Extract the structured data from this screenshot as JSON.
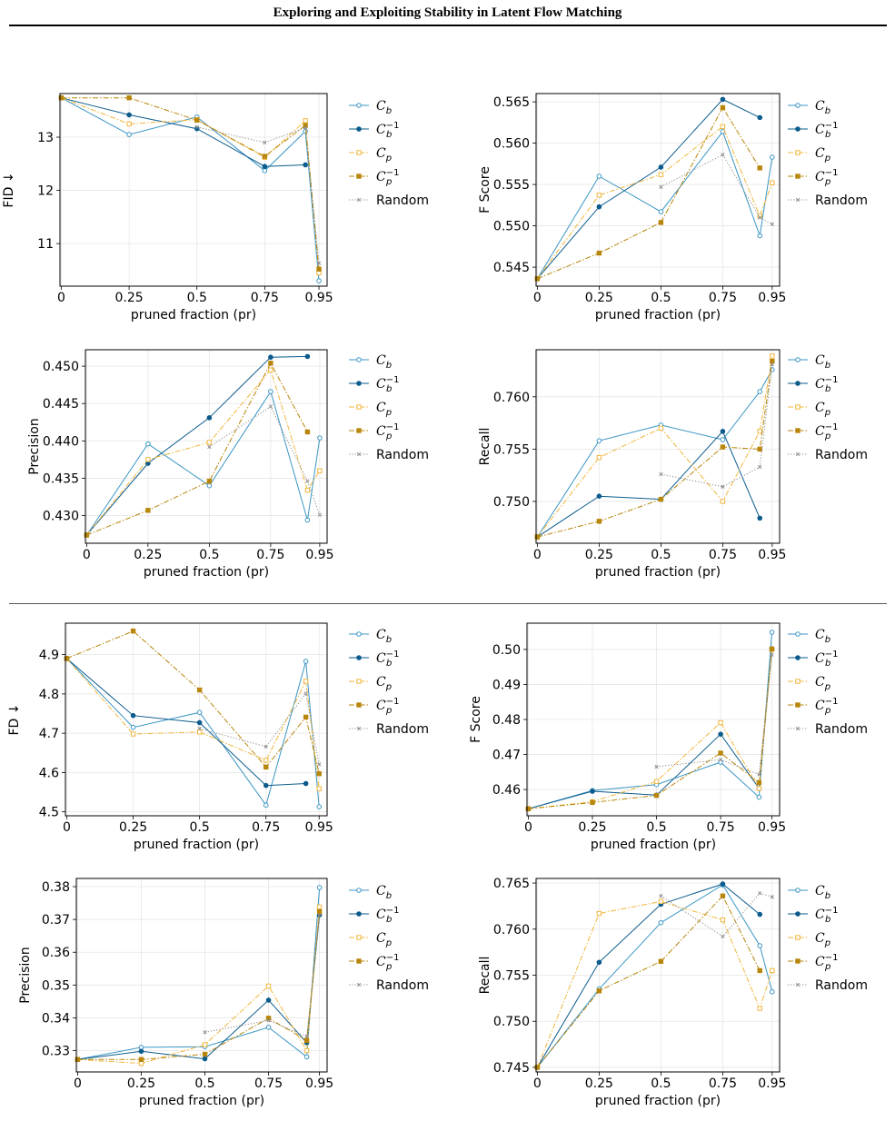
{
  "header": {
    "title": "Exploring and Exploiting Stability in Latent Flow Matching"
  },
  "styles": {
    "Cb": {
      "color": "#3b96c4",
      "marker": "circle-open",
      "dash": "solid"
    },
    "Cbi": {
      "color": "#0b5b8c",
      "marker": "circle-filled",
      "dash": "solid"
    },
    "Cp": {
      "color": "#f0b63c",
      "marker": "square-open",
      "dash": "dashdot"
    },
    "Cpi": {
      "color": "#b8860b",
      "marker": "square-filled",
      "dash": "dashdot"
    },
    "Rand": {
      "color": "#8c8c8c",
      "marker": "x",
      "dash": "dotted"
    }
  },
  "legend_labels": [
    {
      "key": "Cb",
      "base": "C",
      "sub": "b",
      "sup": ""
    },
    {
      "key": "Cbi",
      "base": "C",
      "sub": "b",
      "sup": "−1"
    },
    {
      "key": "Cp",
      "base": "C",
      "sub": "p",
      "sup": ""
    },
    {
      "key": "Cpi",
      "base": "C",
      "sub": "p",
      "sup": "−1"
    },
    {
      "key": "Rand",
      "base": "Random",
      "sub": "",
      "sup": ""
    }
  ],
  "chart_data": [
    {
      "type": "line",
      "ylabel": "FID ↓",
      "xlabel": "pruned fraction (pr)",
      "xticks": [
        0,
        0.25,
        0.5,
        0.75,
        0.95
      ],
      "xtick_labels": [
        "0",
        "0.25",
        "0.5",
        "0.75",
        "0.95"
      ],
      "xlim": [
        -0.005,
        0.98
      ],
      "ylim": [
        10.2,
        13.82
      ],
      "yticks": [
        11,
        12,
        13
      ],
      "ytick_labels": [
        "11",
        "12",
        "13"
      ],
      "series": [
        {
          "key": "Cb",
          "x": [
            0,
            0.25,
            0.5,
            0.75,
            0.9,
            0.95
          ],
          "y": [
            13.74,
            13.05,
            13.38,
            12.37,
            13.11,
            10.3
          ]
        },
        {
          "key": "Cbi",
          "x": [
            0,
            0.25,
            0.5,
            0.75,
            0.9
          ],
          "y": [
            13.74,
            13.42,
            13.16,
            12.45,
            12.48
          ]
        },
        {
          "key": "Cp",
          "x": [
            0,
            0.25,
            0.5,
            0.75,
            0.9,
            0.95
          ],
          "y": [
            13.74,
            13.25,
            13.33,
            12.62,
            13.31,
            10.45
          ]
        },
        {
          "key": "Cpi",
          "x": [
            0,
            0.25,
            0.5,
            0.75,
            0.9,
            0.95
          ],
          "y": [
            13.74,
            13.74,
            13.32,
            12.64,
            13.22,
            10.52
          ]
        },
        {
          "key": "Rand",
          "x": [
            0.5,
            0.75,
            0.9,
            0.95
          ],
          "y": [
            13.19,
            12.9,
            13.18,
            10.63
          ]
        }
      ]
    },
    {
      "type": "line",
      "ylabel": "F Score",
      "xlabel": "pruned fraction (pr)",
      "xticks": [
        0,
        0.25,
        0.5,
        0.75,
        0.95
      ],
      "xtick_labels": [
        "0",
        "0.25",
        "0.5",
        "0.75",
        "0.95"
      ],
      "xlim": [
        -0.005,
        0.98
      ],
      "ylim": [
        0.5427,
        0.566
      ],
      "yticks": [
        0.545,
        0.55,
        0.555,
        0.56,
        0.565
      ],
      "ytick_labels": [
        "0.545",
        "0.550",
        "0.555",
        "0.560",
        "0.565"
      ],
      "series": [
        {
          "key": "Cb",
          "x": [
            0,
            0.25,
            0.5,
            0.75,
            0.9,
            0.95
          ],
          "y": [
            0.5436,
            0.556,
            0.5517,
            0.5614,
            0.5488,
            0.5583
          ]
        },
        {
          "key": "Cbi",
          "x": [
            0,
            0.25,
            0.5,
            0.75,
            0.9
          ],
          "y": [
            0.5436,
            0.5523,
            0.5571,
            0.5653,
            0.5631
          ]
        },
        {
          "key": "Cp",
          "x": [
            0,
            0.25,
            0.5,
            0.75,
            0.9,
            0.95
          ],
          "y": [
            0.5436,
            0.5537,
            0.5562,
            0.562,
            0.5512,
            0.5552
          ]
        },
        {
          "key": "Cpi",
          "x": [
            0,
            0.25,
            0.5,
            0.75,
            0.9
          ],
          "y": [
            0.5436,
            0.5467,
            0.5504,
            0.5643,
            0.557
          ]
        },
        {
          "key": "Rand",
          "x": [
            0.5,
            0.75,
            0.9,
            0.95
          ],
          "y": [
            0.5547,
            0.5586,
            0.551,
            0.5502
          ]
        }
      ]
    },
    {
      "type": "line",
      "ylabel": "Precision",
      "xlabel": "pruned fraction (pr)",
      "xticks": [
        0,
        0.25,
        0.5,
        0.75,
        0.95
      ],
      "xtick_labels": [
        "0",
        "0.25",
        "0.5",
        "0.75",
        "0.95"
      ],
      "xlim": [
        -0.005,
        0.98
      ],
      "ylim": [
        0.4263,
        0.4522
      ],
      "yticks": [
        0.43,
        0.435,
        0.44,
        0.445,
        0.45
      ],
      "ytick_labels": [
        "0.430",
        "0.435",
        "0.440",
        "0.445",
        "0.450"
      ],
      "series": [
        {
          "key": "Cb",
          "x": [
            0,
            0.25,
            0.5,
            0.75,
            0.9,
            0.95
          ],
          "y": [
            0.4274,
            0.4396,
            0.434,
            0.4466,
            0.4294,
            0.4404
          ]
        },
        {
          "key": "Cbi",
          "x": [
            0,
            0.25,
            0.5,
            0.75,
            0.9
          ],
          "y": [
            0.4274,
            0.437,
            0.4431,
            0.4512,
            0.4513
          ]
        },
        {
          "key": "Cp",
          "x": [
            0,
            0.25,
            0.5,
            0.75,
            0.9,
            0.95
          ],
          "y": [
            0.4274,
            0.4375,
            0.4398,
            0.4495,
            0.4334,
            0.436
          ]
        },
        {
          "key": "Cpi",
          "x": [
            0,
            0.25,
            0.5,
            0.75,
            0.9
          ],
          "y": [
            0.4274,
            0.4307,
            0.4346,
            0.4504,
            0.4412
          ]
        },
        {
          "key": "Rand",
          "x": [
            0.5,
            0.75,
            0.9,
            0.95
          ],
          "y": [
            0.4392,
            0.4446,
            0.4346,
            0.4301
          ]
        }
      ]
    },
    {
      "type": "line",
      "ylabel": "Recall",
      "xlabel": "pruned fraction (pr)",
      "xticks": [
        0,
        0.25,
        0.5,
        0.75,
        0.95
      ],
      "xtick_labels": [
        "0",
        "0.25",
        "0.5",
        "0.75",
        "0.95"
      ],
      "xlim": [
        -0.005,
        0.98
      ],
      "ylim": [
        0.746,
        0.7645
      ],
      "yticks": [
        0.75,
        0.755,
        0.76
      ],
      "ytick_labels": [
        "0.750",
        "0.755",
        "0.760"
      ],
      "series": [
        {
          "key": "Cb",
          "x": [
            0,
            0.25,
            0.5,
            0.75,
            0.9,
            0.95
          ],
          "y": [
            0.7466,
            0.7558,
            0.7573,
            0.7559,
            0.7605,
            0.7626
          ]
        },
        {
          "key": "Cbi",
          "x": [
            0,
            0.25,
            0.5,
            0.75,
            0.9
          ],
          "y": [
            0.7466,
            0.7505,
            0.7502,
            0.7567,
            0.7484
          ]
        },
        {
          "key": "Cp",
          "x": [
            0,
            0.25,
            0.5,
            0.75,
            0.9,
            0.95
          ],
          "y": [
            0.7466,
            0.7542,
            0.757,
            0.75,
            0.7567,
            0.7639
          ]
        },
        {
          "key": "Cpi",
          "x": [
            0,
            0.25,
            0.5,
            0.75,
            0.9,
            0.95
          ],
          "y": [
            0.7466,
            0.7481,
            0.7502,
            0.7552,
            0.755,
            0.7634
          ]
        },
        {
          "key": "Rand",
          "x": [
            0.5,
            0.75,
            0.9,
            0.95
          ],
          "y": [
            0.7526,
            0.7514,
            0.7533,
            0.7631
          ]
        }
      ]
    },
    {
      "type": "line",
      "ylabel": "FD ↓",
      "xlabel": "pruned fraction (pr)",
      "xticks": [
        0,
        0.25,
        0.5,
        0.75,
        0.95
      ],
      "xtick_labels": [
        "0",
        "0.25",
        "0.5",
        "0.75",
        "0.95"
      ],
      "xlim": [
        -0.005,
        0.98
      ],
      "ylim": [
        4.49,
        4.98
      ],
      "yticks": [
        4.5,
        4.6,
        4.7,
        4.8,
        4.9
      ],
      "ytick_labels": [
        "4.5",
        "4.6",
        "4.7",
        "4.8",
        "4.9"
      ],
      "series": [
        {
          "key": "Cb",
          "x": [
            0,
            0.25,
            0.5,
            0.75,
            0.9,
            0.95
          ],
          "y": [
            4.89,
            4.715,
            4.753,
            4.517,
            4.883,
            4.513
          ]
        },
        {
          "key": "Cbi",
          "x": [
            0,
            0.25,
            0.5,
            0.75,
            0.9
          ],
          "y": [
            4.89,
            4.745,
            4.727,
            4.567,
            4.572
          ]
        },
        {
          "key": "Cp",
          "x": [
            0,
            0.25,
            0.5,
            0.75,
            0.9,
            0.95
          ],
          "y": [
            4.89,
            4.698,
            4.703,
            4.631,
            4.832,
            4.559
          ]
        },
        {
          "key": "Cpi",
          "x": [
            0,
            0.25,
            0.5,
            0.75,
            0.9,
            0.95
          ],
          "y": [
            4.89,
            4.96,
            4.81,
            4.614,
            4.741,
            4.597
          ]
        },
        {
          "key": "Rand",
          "x": [
            0.5,
            0.75,
            0.9,
            0.95
          ],
          "y": [
            4.712,
            4.666,
            4.801,
            4.621
          ]
        }
      ]
    },
    {
      "type": "line",
      "ylabel": "F Score",
      "xlabel": "pruned fraction (pr)",
      "xticks": [
        0,
        0.25,
        0.5,
        0.75,
        0.95
      ],
      "xtick_labels": [
        "0",
        "0.25",
        "0.5",
        "0.75",
        "0.95"
      ],
      "xlim": [
        -0.005,
        0.98
      ],
      "ylim": [
        0.4525,
        0.5075
      ],
      "yticks": [
        0.46,
        0.47,
        0.48,
        0.49,
        0.5
      ],
      "ytick_labels": [
        "0.46",
        "0.47",
        "0.48",
        "0.49",
        "0.50"
      ],
      "series": [
        {
          "key": "Cb",
          "x": [
            0,
            0.25,
            0.5,
            0.75,
            0.9,
            0.95
          ],
          "y": [
            0.4545,
            0.4597,
            0.4614,
            0.4678,
            0.4578,
            0.5049
          ]
        },
        {
          "key": "Cbi",
          "x": [
            0,
            0.25,
            0.5,
            0.75,
            0.9,
            0.95
          ],
          "y": [
            0.4545,
            0.4595,
            0.4584,
            0.4758,
            0.4603,
            0.5002
          ]
        },
        {
          "key": "Cp",
          "x": [
            0,
            0.25,
            0.5,
            0.75,
            0.9,
            0.95
          ],
          "y": [
            0.4545,
            0.4565,
            0.4623,
            0.4791,
            0.4603,
            0.5001
          ]
        },
        {
          "key": "Cpi",
          "x": [
            0,
            0.25,
            0.5,
            0.75,
            0.9,
            0.95
          ],
          "y": [
            0.4545,
            0.4563,
            0.4583,
            0.4704,
            0.462,
            0.5001
          ]
        },
        {
          "key": "Rand",
          "x": [
            0.5,
            0.75,
            0.9,
            0.95
          ],
          "y": [
            0.4665,
            0.4685,
            0.4643,
            0.4985
          ]
        }
      ]
    },
    {
      "type": "line",
      "ylabel": "Precision",
      "xlabel": "pruned fraction (pr)",
      "xticks": [
        0,
        0.25,
        0.5,
        0.75,
        0.95
      ],
      "xtick_labels": [
        "0",
        "0.25",
        "0.5",
        "0.75",
        "0.95"
      ],
      "xlim": [
        -0.005,
        0.98
      ],
      "ylim": [
        0.3235,
        0.3825
      ],
      "yticks": [
        0.33,
        0.34,
        0.35,
        0.36,
        0.37,
        0.38
      ],
      "ytick_labels": [
        "0.33",
        "0.34",
        "0.35",
        "0.36",
        "0.37",
        "0.38"
      ],
      "series": [
        {
          "key": "Cb",
          "x": [
            0,
            0.25,
            0.5,
            0.75,
            0.9,
            0.95
          ],
          "y": [
            0.3273,
            0.331,
            0.3312,
            0.3371,
            0.3281,
            0.3797
          ]
        },
        {
          "key": "Cbi",
          "x": [
            0,
            0.25,
            0.5,
            0.75,
            0.9,
            0.95
          ],
          "y": [
            0.3273,
            0.3298,
            0.3275,
            0.3454,
            0.3324,
            0.3713
          ]
        },
        {
          "key": "Cp",
          "x": [
            0,
            0.25,
            0.5,
            0.75,
            0.9,
            0.95
          ],
          "y": [
            0.3273,
            0.3261,
            0.3318,
            0.3497,
            0.33,
            0.3738
          ]
        },
        {
          "key": "Cpi",
          "x": [
            0,
            0.25,
            0.5,
            0.75,
            0.9,
            0.95
          ],
          "y": [
            0.3273,
            0.3273,
            0.3289,
            0.3399,
            0.3331,
            0.3724
          ]
        },
        {
          "key": "Rand",
          "x": [
            0.5,
            0.75,
            0.9,
            0.95
          ],
          "y": [
            0.3356,
            0.3392,
            0.3343,
            0.3712
          ]
        }
      ]
    },
    {
      "type": "line",
      "ylabel": "Recall",
      "xlabel": "pruned fraction (pr)",
      "xticks": [
        0,
        0.25,
        0.5,
        0.75,
        0.95
      ],
      "xtick_labels": [
        "0",
        "0.25",
        "0.5",
        "0.75",
        "0.95"
      ],
      "xlim": [
        -0.005,
        0.98
      ],
      "ylim": [
        0.7445,
        0.7655
      ],
      "yticks": [
        0.745,
        0.75,
        0.755,
        0.76,
        0.765
      ],
      "ytick_labels": [
        "0.745",
        "0.750",
        "0.755",
        "0.760",
        "0.765"
      ],
      "series": [
        {
          "key": "Cb",
          "x": [
            0,
            0.25,
            0.5,
            0.75,
            0.9,
            0.95
          ],
          "y": [
            0.745,
            0.7535,
            0.7607,
            0.7648,
            0.7582,
            0.7532
          ]
        },
        {
          "key": "Cbi",
          "x": [
            0,
            0.25,
            0.5,
            0.75,
            0.9
          ],
          "y": [
            0.745,
            0.7564,
            0.7627,
            0.7649,
            0.7616
          ]
        },
        {
          "key": "Cp",
          "x": [
            0,
            0.25,
            0.5,
            0.75,
            0.9,
            0.95
          ],
          "y": [
            0.745,
            0.7617,
            0.763,
            0.761,
            0.7514,
            0.7555
          ]
        },
        {
          "key": "Cpi",
          "x": [
            0,
            0.25,
            0.5,
            0.75,
            0.9
          ],
          "y": [
            0.745,
            0.7533,
            0.7565,
            0.7636,
            0.7555
          ]
        },
        {
          "key": "Rand",
          "x": [
            0.5,
            0.75,
            0.9,
            0.95
          ],
          "y": [
            0.7636,
            0.7592,
            0.7639,
            0.7635
          ]
        }
      ]
    }
  ]
}
